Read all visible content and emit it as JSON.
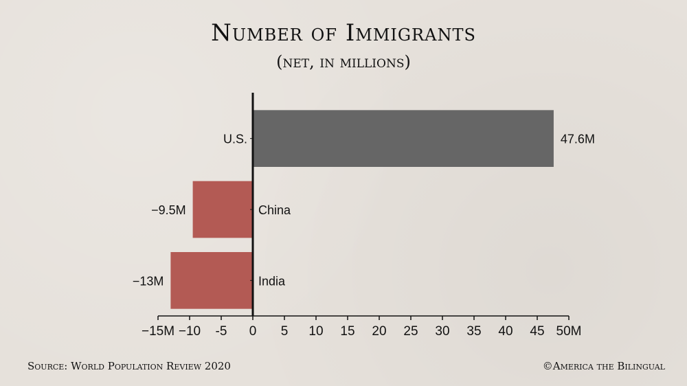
{
  "header": {
    "title": "Number of Immigrants",
    "subtitle": "(net, in millions)"
  },
  "footer": {
    "source": "Source: World Population Review 2020",
    "credit": "©America the Bilingual"
  },
  "colors": {
    "background": "#e6e1db",
    "positive_bar": "#666666",
    "negative_bar": "#b35a54",
    "axis": "#111111"
  },
  "chart_data": {
    "type": "bar",
    "orientation": "horizontal",
    "categories": [
      "U.S.",
      "China",
      "India"
    ],
    "values": [
      47.6,
      -9.5,
      -13
    ],
    "value_labels": [
      "47.6M",
      "−9.5M",
      "−13M"
    ],
    "title": "Number of Immigrants",
    "subtitle": "(net, in millions)",
    "xlabel": "",
    "ylabel": "",
    "xlim": [
      -15,
      50
    ],
    "xticks": [
      -15,
      -10,
      -5,
      0,
      5,
      10,
      15,
      20,
      25,
      30,
      35,
      40,
      45,
      50
    ],
    "xtick_labels": [
      "−15M",
      "−10",
      "-5",
      "0",
      "5",
      "10",
      "15",
      "20",
      "25",
      "30",
      "35",
      "40",
      "45",
      "50M"
    ],
    "grid": false,
    "legend": "none"
  }
}
